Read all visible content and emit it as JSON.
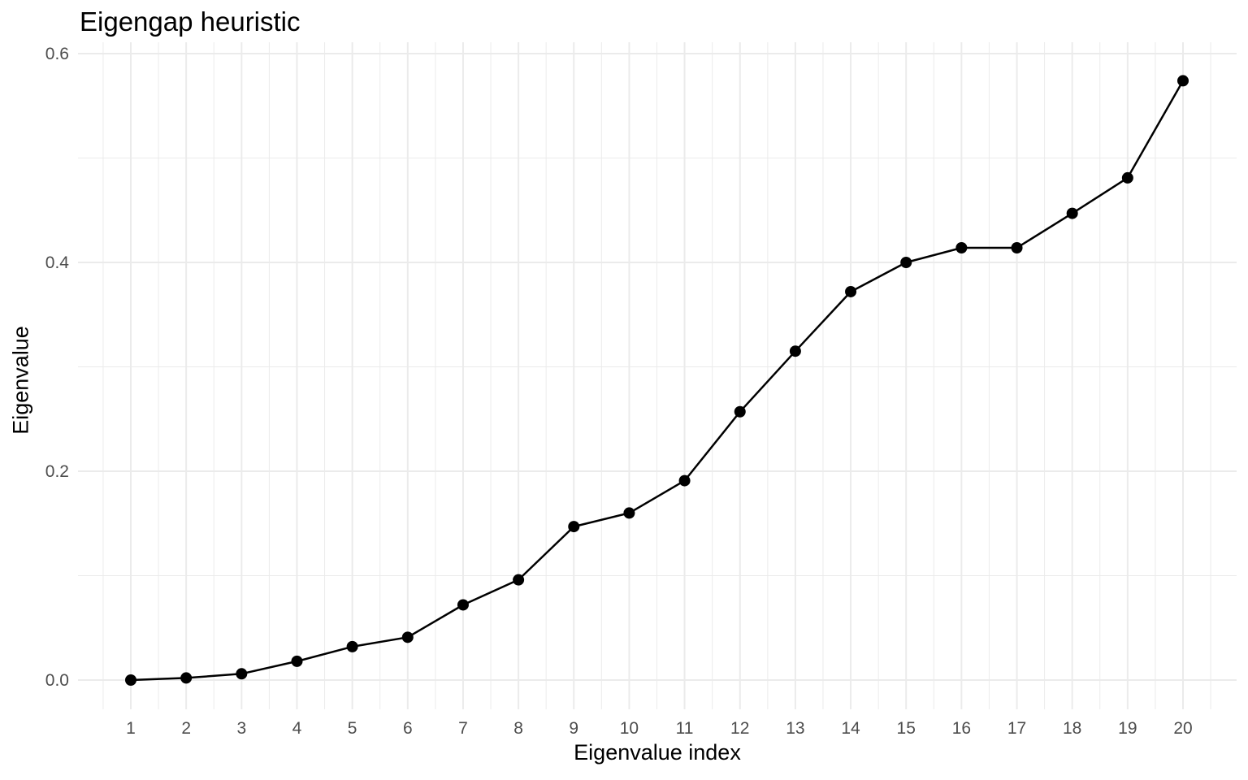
{
  "chart_data": {
    "type": "line",
    "title": "Eigengap heuristic",
    "xlabel": "Eigenvalue index",
    "ylabel": "Eigenvalue",
    "x": [
      1,
      2,
      3,
      4,
      5,
      6,
      7,
      8,
      9,
      10,
      11,
      12,
      13,
      14,
      15,
      16,
      17,
      18,
      19,
      20
    ],
    "series": [
      {
        "name": "Eigenvalue",
        "values": [
          0.0,
          0.002,
          0.006,
          0.018,
          0.032,
          0.041,
          0.072,
          0.096,
          0.147,
          0.16,
          0.191,
          0.257,
          0.315,
          0.372,
          0.4,
          0.414,
          0.414,
          0.447,
          0.481,
          0.574
        ],
        "color": "#000000",
        "markers": true
      }
    ],
    "xlim": [
      0.5,
      20.5
    ],
    "ylim": [
      -0.05,
      0.6
    ],
    "y_ticks": [
      0.0,
      0.2,
      0.4,
      0.6
    ],
    "y_tick_labels": [
      "0.0",
      "0.2",
      "0.4",
      "0.6"
    ],
    "x_tick_labels": [
      "1",
      "2",
      "3",
      "4",
      "5",
      "6",
      "7",
      "8",
      "9",
      "10",
      "11",
      "12",
      "13",
      "14",
      "15",
      "16",
      "17",
      "18",
      "19",
      "20"
    ],
    "grid": true,
    "legend": "none",
    "theme": "minimal"
  }
}
